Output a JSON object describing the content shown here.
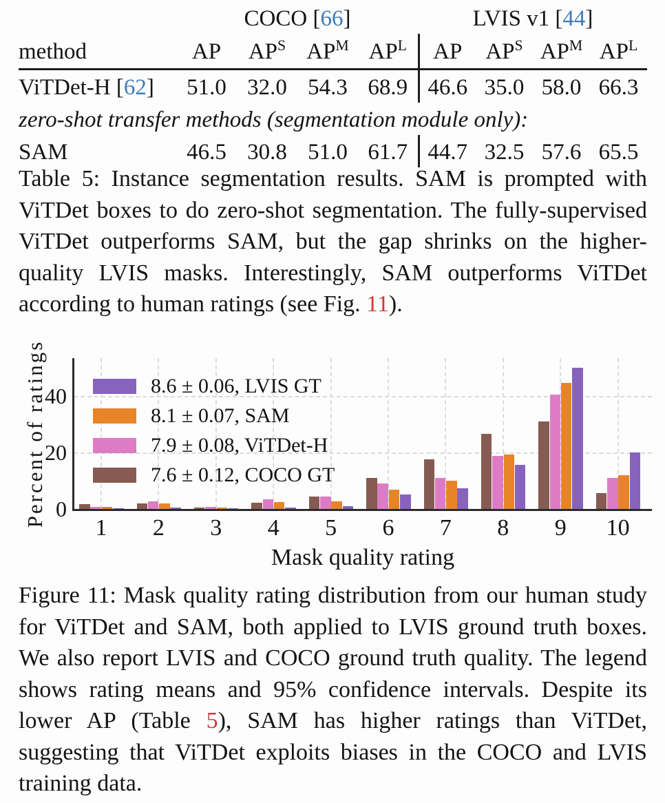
{
  "page": {
    "background": "#fdfdfd"
  },
  "links": {
    "blue": "#3e7bb9",
    "red": "#d03a35"
  },
  "table": {
    "method_header": "method",
    "groups": [
      {
        "pre": "COCO [",
        "ref": "66",
        "post": "]"
      },
      {
        "pre": "LVIS v1 [",
        "ref": "44",
        "post": "]"
      }
    ],
    "columns": [
      {
        "base": "AP",
        "sup": ""
      },
      {
        "base": "AP",
        "sup": "S"
      },
      {
        "base": "AP",
        "sup": "M"
      },
      {
        "base": "AP",
        "sup": "L"
      },
      {
        "base": "AP",
        "sup": ""
      },
      {
        "base": "AP",
        "sup": "S"
      },
      {
        "base": "AP",
        "sup": "M"
      },
      {
        "base": "AP",
        "sup": "L"
      }
    ],
    "rows": [
      {
        "method_pre": "ViTDet-H [",
        "method_ref": "62",
        "method_post": "]",
        "values": [
          "51.0",
          "32.0",
          "54.3",
          "68.9",
          "46.6",
          "35.0",
          "58.0",
          "66.3"
        ]
      },
      {
        "method_pre": "SAM",
        "method_ref": "",
        "method_post": "",
        "values": [
          "46.5",
          "30.8",
          "51.0",
          "61.7",
          "44.7",
          "32.5",
          "57.6",
          "65.5"
        ]
      }
    ],
    "note": "zero-shot transfer methods (segmentation module only):"
  },
  "table_caption": {
    "pre": "Table 5: Instance segmentation results. SAM is prompted with ViTDet boxes to do zero-shot segmentation. The fully-supervised ViTDet outperforms SAM, but the gap shrinks on the higher-quality LVIS masks. Interestingly, SAM outperforms ViTDet according to human ratings (see Fig. ",
    "link": "11",
    "post": ")."
  },
  "figure_caption": {
    "pre": "Figure 11: Mask quality rating distribution from our human study for ViTDet and SAM, both applied to LVIS ground truth boxes. We also report LVIS and COCO ground truth quality. The legend shows rating means and 95% confidence intervals. Despite its lower AP (Table ",
    "link": "5",
    "post": "), SAM has higher ratings than ViTDet, suggesting that ViTDet exploits biases in the COCO and LVIS training data."
  },
  "chart_data": {
    "type": "bar",
    "title": "",
    "xlabel": "Mask quality rating",
    "ylabel": "Percent of ratings",
    "categories": [
      "1",
      "2",
      "3",
      "4",
      "5",
      "6",
      "7",
      "8",
      "9",
      "10"
    ],
    "series": [
      {
        "name": "COCO GT",
        "color": "#855B52",
        "values": [
          1.8,
          2.0,
          0.6,
          2.2,
          4.4,
          11.0,
          17.5,
          26.5,
          31.0,
          5.5
        ]
      },
      {
        "name": "ViTDet-H",
        "color": "#DD7CC5",
        "values": [
          0.7,
          2.6,
          0.7,
          3.3,
          4.5,
          9.0,
          11.0,
          18.8,
          40.5,
          11.0
        ]
      },
      {
        "name": "SAM",
        "color": "#E88428",
        "values": [
          0.7,
          1.9,
          0.6,
          2.4,
          2.6,
          6.9,
          9.9,
          19.3,
          44.5,
          12.0
        ]
      },
      {
        "name": "LVIS GT",
        "color": "#8763BD",
        "values": [
          0.1,
          0.5,
          0.15,
          0.5,
          1.0,
          5.0,
          7.3,
          15.7,
          50.0,
          20.0
        ]
      }
    ],
    "legend": [
      {
        "label": "8.6 ± 0.06, LVIS GT",
        "color": "#8763BD"
      },
      {
        "label": "8.1 ± 0.07, SAM",
        "color": "#E88428"
      },
      {
        "label": "7.9 ± 0.08, ViTDet-H",
        "color": "#DD7CC5"
      },
      {
        "label": "7.6 ± 0.12, COCO GT",
        "color": "#855B52"
      }
    ],
    "yticks": [
      0,
      20,
      40
    ],
    "ylim": [
      0,
      53
    ],
    "grid": "dashed-both-axes",
    "legend_position": "upper-left"
  }
}
